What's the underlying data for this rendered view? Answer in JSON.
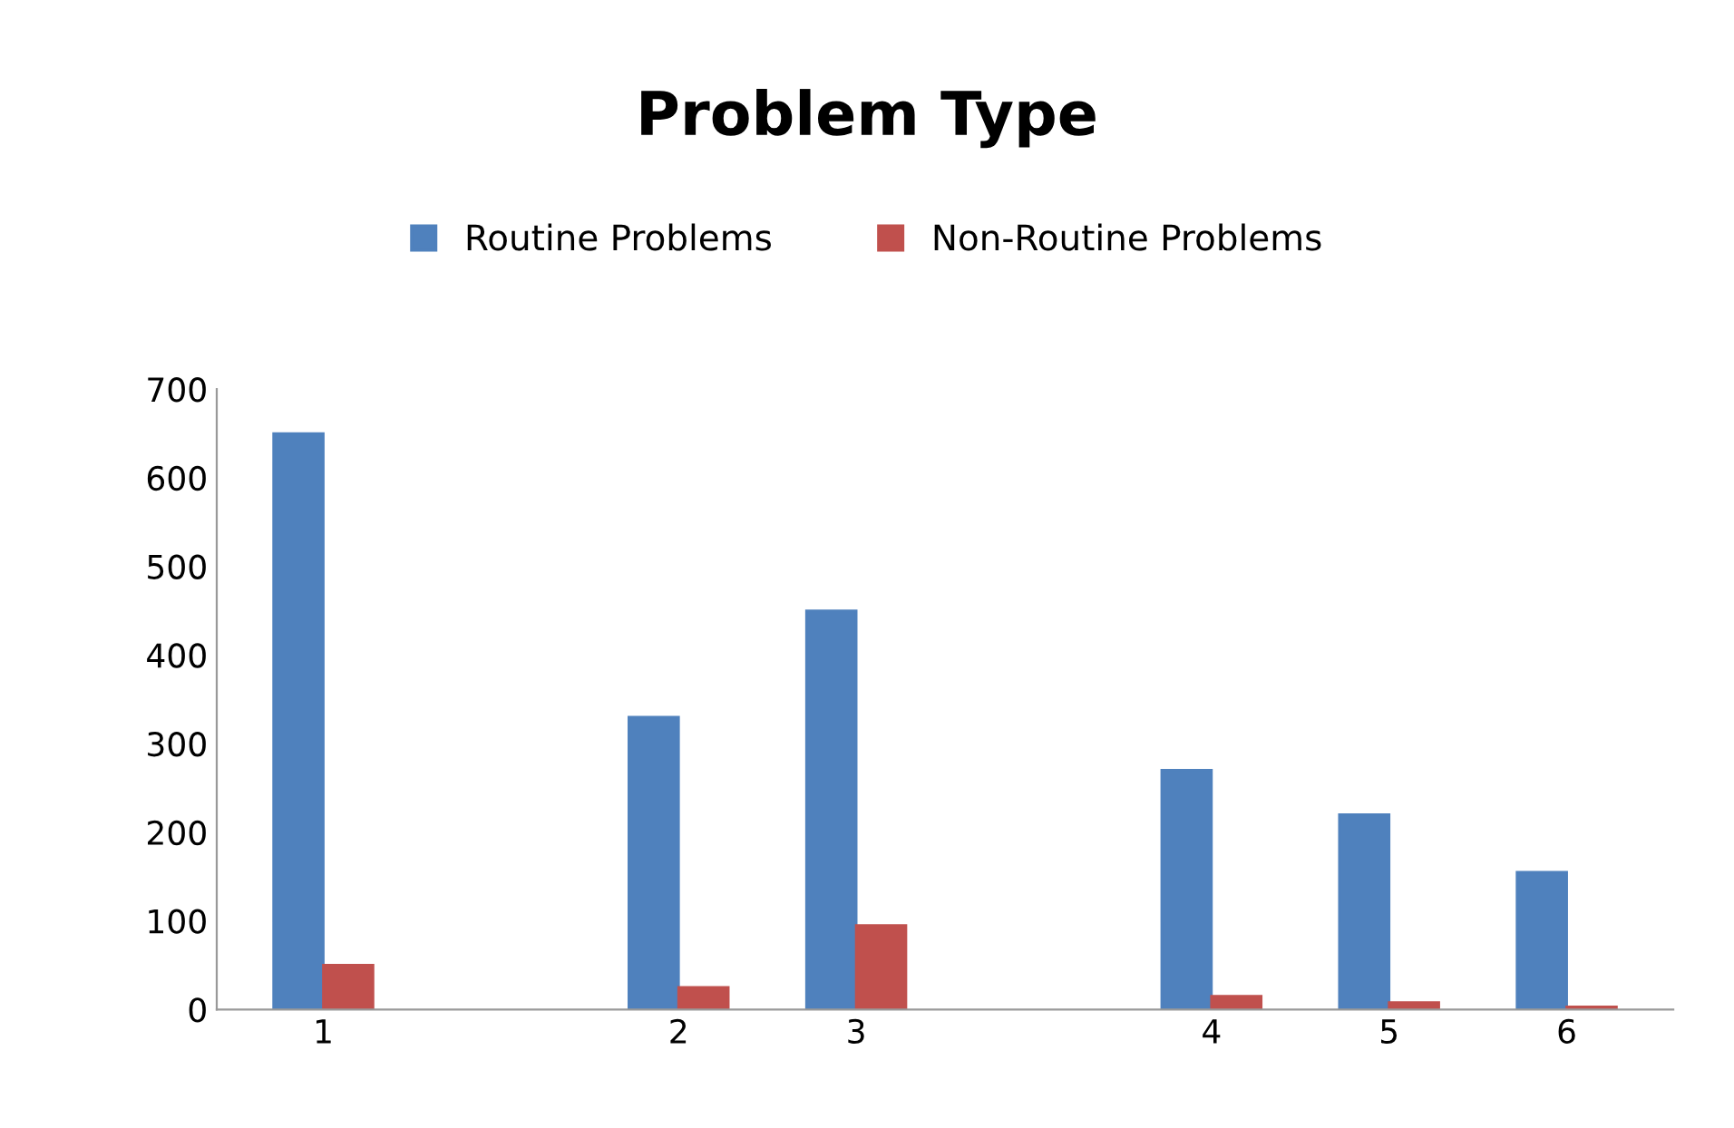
{
  "chart_data": {
    "type": "bar",
    "title": "Problem Type",
    "categories": [
      "1",
      null,
      "2",
      "3",
      null,
      "4",
      "5",
      "6"
    ],
    "series": [
      {
        "name": "Routine Problems",
        "color": "#4f81bd",
        "values": [
          650,
          null,
          330,
          450,
          null,
          270,
          220,
          155
        ]
      },
      {
        "name": "Non-Routine Problems",
        "color": "#c0504d",
        "values": [
          50,
          null,
          25,
          95,
          null,
          15,
          8,
          3
        ]
      }
    ],
    "ylim": [
      0,
      700
    ],
    "yticks": [
      0,
      100,
      200,
      300,
      400,
      500,
      600,
      700
    ],
    "grid": false,
    "legend": "top"
  }
}
